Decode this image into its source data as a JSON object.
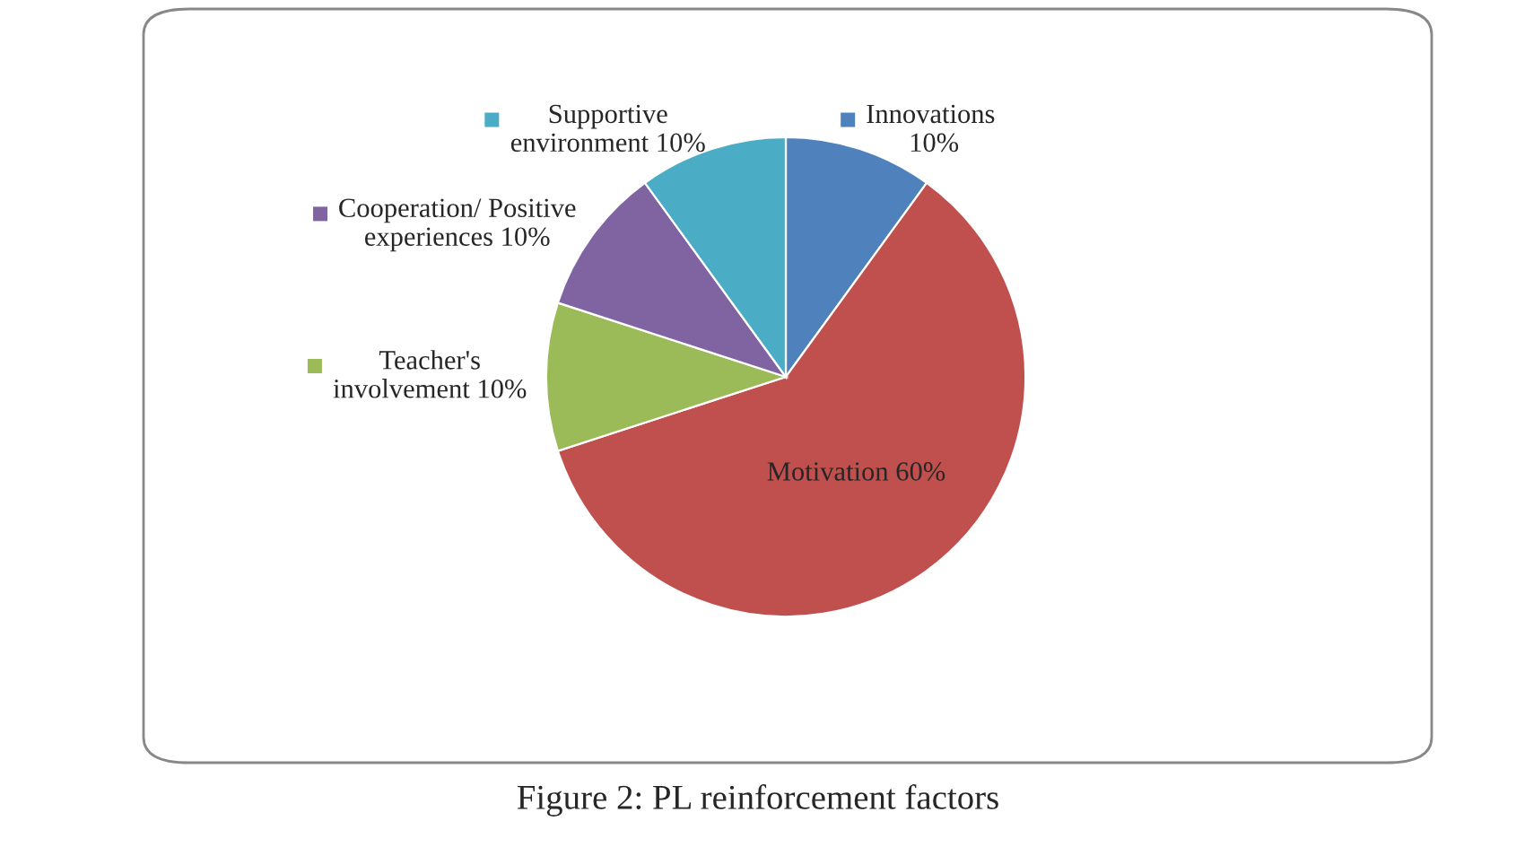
{
  "chart_data": {
    "type": "pie",
    "categories": [
      "Innovations",
      "Motivation",
      "Teacher's involvement",
      "Cooperation/ Positive experiences",
      "Supportive environment"
    ],
    "values": [
      10,
      60,
      10,
      10,
      10
    ],
    "colors": [
      "#4f81bd",
      "#c0504d",
      "#9bbb59",
      "#8064a2",
      "#4bacc6"
    ],
    "value_labels": [
      "10%",
      "60%",
      "10%",
      "10%",
      "10%"
    ],
    "legend": "left",
    "annotations": [
      "Figure 2: PL reinforcement factors"
    ]
  }
}
